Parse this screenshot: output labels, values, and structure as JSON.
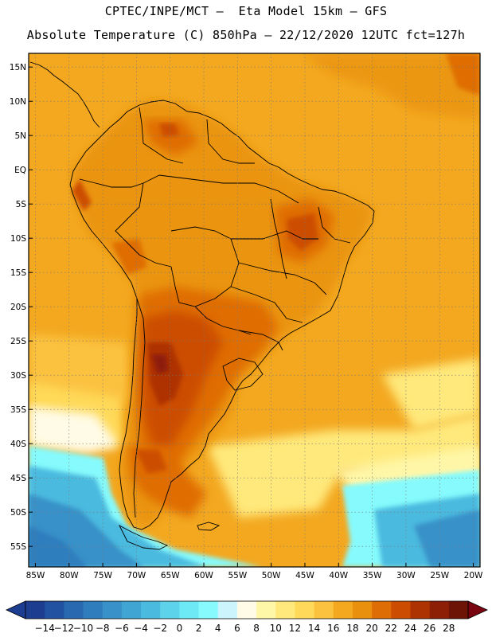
{
  "header": {
    "line1": "CPTEC/INPE/MCT –  Eta Model 15km – GFS",
    "line2": "Absolute Temperature (C) 850hPa – 22/12/2020 12UTC fct=127h"
  },
  "map": {
    "lon_range": [
      -86,
      -19
    ],
    "lat_range": [
      -58,
      17
    ],
    "lat_ticks": [
      "15N",
      "10N",
      "5N",
      "EQ",
      "5S",
      "10S",
      "15S",
      "20S",
      "25S",
      "30S",
      "35S",
      "40S",
      "45S",
      "50S",
      "55S"
    ],
    "lat_values": [
      15,
      10,
      5,
      0,
      -5,
      -10,
      -15,
      -20,
      -25,
      -30,
      -35,
      -40,
      -45,
      -50,
      -55
    ],
    "lon_ticks": [
      "85W",
      "80W",
      "75W",
      "70W",
      "65W",
      "60W",
      "55W",
      "50W",
      "45W",
      "40W",
      "35W",
      "30W",
      "25W",
      "20W"
    ],
    "lon_values": [
      -85,
      -80,
      -75,
      -70,
      -65,
      -60,
      -55,
      -50,
      -45,
      -40,
      -35,
      -30,
      -25,
      -20
    ],
    "gridlines": true
  },
  "colorbar": {
    "units": "C",
    "labels": [
      "-14",
      "-12",
      "-10",
      "-8",
      "-6",
      "-4",
      "-2",
      "0",
      "2",
      "4",
      "6",
      "8",
      "10",
      "12",
      "14",
      "16",
      "18",
      "20",
      "22",
      "24",
      "26",
      "28"
    ],
    "colors": [
      "#1d3d91",
      "#2152a1",
      "#2869b0",
      "#2f7dbd",
      "#3891c8",
      "#40a5d3",
      "#4bbadf",
      "#5cd3eb",
      "#6de9f5",
      "#86fafc",
      "#ccf4fc",
      "#fffbe6",
      "#fff7a8",
      "#ffe97c",
      "#ffd959",
      "#fbc23f",
      "#f3a820",
      "#e9910f",
      "#df6d05",
      "#cc4d02",
      "#ad3302",
      "#8e1f07",
      "#6e1406"
    ],
    "low_color": "#1d3d91",
    "high_color": "#7a0410"
  },
  "regions": [
    {
      "name": "ocean-base",
      "color": "#f3a820"
    },
    {
      "name": "cold-southern-ocean",
      "color": "#86fafc"
    },
    {
      "name": "very-cold-southern-ocean",
      "color": "#40a5d3"
    },
    {
      "name": "hot-interior",
      "color": "#df6d05"
    },
    {
      "name": "very-hot-chaco",
      "color": "#ad3302"
    }
  ]
}
